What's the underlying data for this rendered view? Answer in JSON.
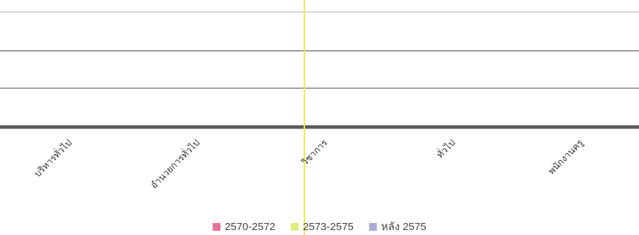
{
  "chart_data": {
    "type": "bar",
    "categories": [
      "บริหารทั่วไป",
      "อำนวยการทั่วไป",
      "วิชาการ",
      "ทั่วไป",
      "พนักงานครู"
    ],
    "series": [
      {
        "name": "2570-2572",
        "color": "#e8739a",
        "values": [
          0,
          0,
          0,
          0,
          0
        ]
      },
      {
        "name": "2573-2575",
        "color": "#e6ec7a",
        "values": [
          0,
          0,
          0,
          0,
          0
        ]
      },
      {
        "name": "หลัง 2575",
        "color": "#a9abd8",
        "values": [
          0,
          0,
          0,
          0,
          0
        ]
      }
    ],
    "grid": true,
    "legend": "bottom-center",
    "marker_color": "#f2ea3a"
  }
}
